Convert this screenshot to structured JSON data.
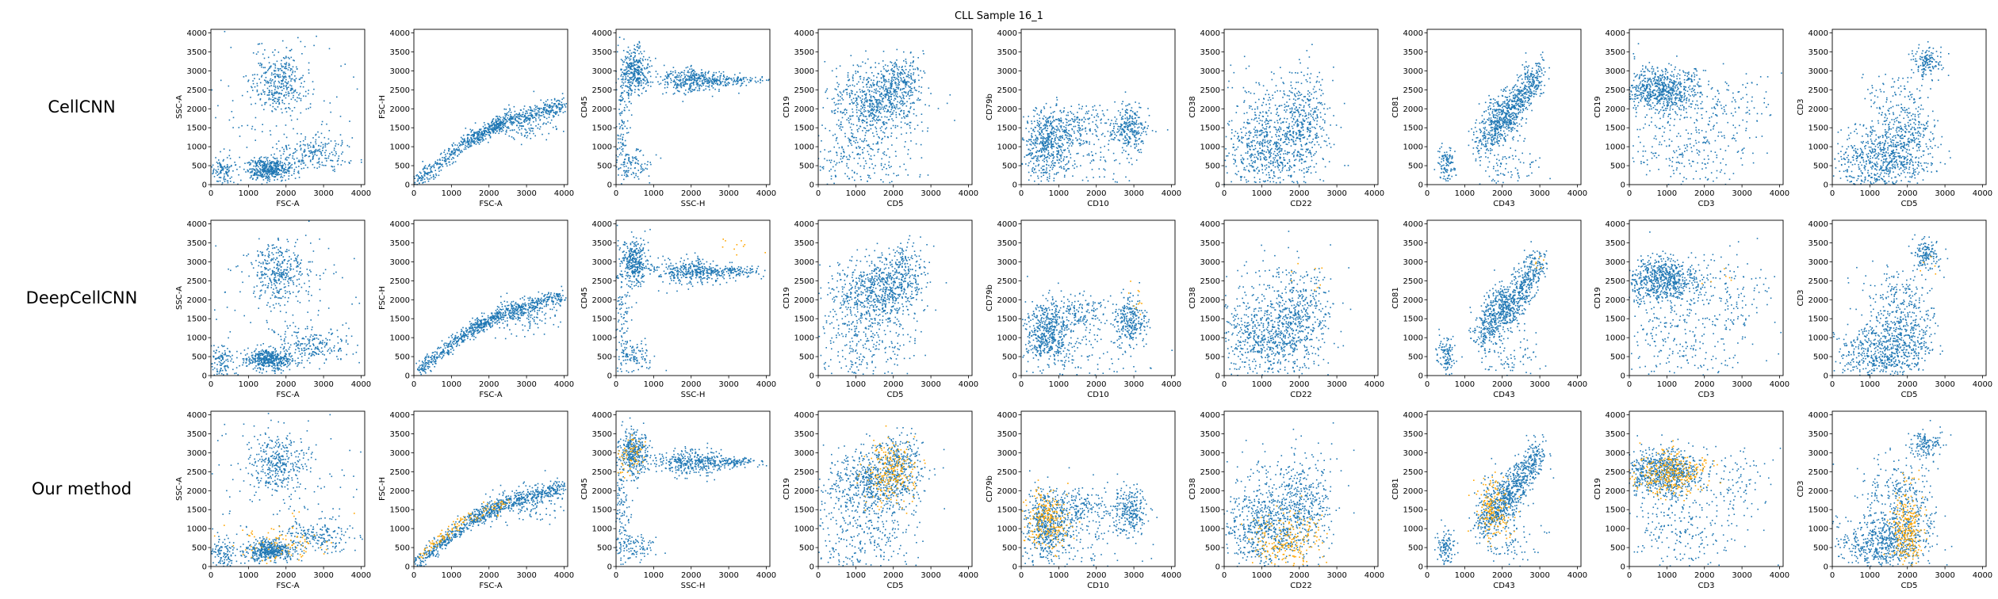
{
  "figure": {
    "suptitle": "CLL Sample 16_1",
    "colors": {
      "background_cells": "#1f77b4",
      "selected_cells": "#ffa500",
      "axes": "#000000"
    }
  },
  "chart_data": {
    "type": "scatter",
    "rows": [
      "CellCNN",
      "DeepCellCNN",
      "Our method"
    ],
    "panels": [
      {
        "xlabel": "FSC-A",
        "ylabel": "SSC-A"
      },
      {
        "xlabel": "FSC-A",
        "ylabel": "FSC-H"
      },
      {
        "xlabel": "SSC-H",
        "ylabel": "CD45"
      },
      {
        "xlabel": "CD5",
        "ylabel": "CD19"
      },
      {
        "xlabel": "CD10",
        "ylabel": "CD79b"
      },
      {
        "xlabel": "CD22",
        "ylabel": "CD38"
      },
      {
        "xlabel": "CD43",
        "ylabel": "CD81"
      },
      {
        "xlabel": "CD3",
        "ylabel": "CD19"
      },
      {
        "xlabel": "CD5",
        "ylabel": "CD3"
      }
    ],
    "xlim": [
      0,
      4096
    ],
    "ylim": [
      0,
      4096
    ],
    "xticks": [
      "0",
      "1000",
      "2000",
      "3000",
      "4000"
    ],
    "yticks": [
      "0",
      "500",
      "1000",
      "1500",
      "2000",
      "2500",
      "3000",
      "3500",
      "4000"
    ],
    "grid": false,
    "series": [
      {
        "name": "",
        "color": "#1f77b4"
      },
      {
        "name": "",
        "color": "#ffa500"
      }
    ],
    "clusters": [
      [
        {
          "cx": 1800,
          "cy": 2700,
          "sx": 350,
          "sy": 400,
          "n": 330
        },
        {
          "cx": 1550,
          "cy": 420,
          "sx": 320,
          "sy": 140,
          "n": 430
        },
        {
          "cx": 2800,
          "cy": 800,
          "sx": 500,
          "sy": 220,
          "n": 190
        },
        {
          "cx": 300,
          "cy": 350,
          "sx": 180,
          "sy": 250,
          "n": 120
        },
        {
          "cx": 2000,
          "cy": 2000,
          "sx": 1100,
          "sy": 1100,
          "n": 130
        }
      ],
      [
        {
          "line": [
            [
              50,
              80
            ],
            [
              1500,
              1200
            ],
            [
              2400,
              1650
            ],
            [
              4000,
              2100
            ]
          ],
          "s": 110,
          "n": 820
        },
        {
          "cx": 3000,
          "cy": 1600,
          "sx": 500,
          "sy": 250,
          "n": 120
        }
      ],
      [
        {
          "cx": 500,
          "cy": 3000,
          "sx": 180,
          "sy": 300,
          "n": 330
        },
        {
          "cx": 2000,
          "cy": 2750,
          "sx": 450,
          "sy": 170,
          "n": 330
        },
        {
          "cx": 3100,
          "cy": 2750,
          "sx": 450,
          "sy": 70,
          "n": 130
        },
        {
          "cx": 150,
          "cy": 1500,
          "sx": 120,
          "sy": 900,
          "n": 140
        },
        {
          "cx": 500,
          "cy": 500,
          "sx": 250,
          "sy": 200,
          "n": 90
        }
      ],
      [
        {
          "cx": 1500,
          "cy": 2200,
          "sx": 600,
          "sy": 450,
          "n": 650
        },
        {
          "cx": 2200,
          "cy": 2800,
          "sx": 300,
          "sy": 350,
          "n": 200
        },
        {
          "cx": 1200,
          "cy": 800,
          "sx": 700,
          "sy": 600,
          "n": 280
        }
      ],
      [
        {
          "cx": 700,
          "cy": 1100,
          "sx": 300,
          "sy": 450,
          "n": 500
        },
        {
          "cx": 1600,
          "cy": 1600,
          "sx": 450,
          "sy": 250,
          "n": 150
        },
        {
          "cx": 2900,
          "cy": 1450,
          "sx": 220,
          "sy": 320,
          "n": 250
        },
        {
          "cx": 1500,
          "cy": 700,
          "sx": 800,
          "sy": 600,
          "n": 150
        }
      ],
      [
        {
          "cx": 1200,
          "cy": 1000,
          "sx": 650,
          "sy": 550,
          "n": 700
        },
        {
          "cx": 2100,
          "cy": 1700,
          "sx": 350,
          "sy": 600,
          "n": 250
        },
        {
          "cx": 1500,
          "cy": 2300,
          "sx": 800,
          "sy": 500,
          "n": 100
        }
      ],
      [
        {
          "line": [
            [
              1400,
              1000
            ],
            [
              2300,
              2000
            ],
            [
              3000,
              3000
            ]
          ],
          "s": 250,
          "n": 650
        },
        {
          "cx": 2000,
          "cy": 1800,
          "sx": 250,
          "sy": 350,
          "n": 200
        },
        {
          "cx": 500,
          "cy": 500,
          "sx": 120,
          "sy": 250,
          "n": 110
        },
        {
          "cx": 2200,
          "cy": 500,
          "sx": 400,
          "sy": 400,
          "n": 90
        }
      ],
      [
        {
          "cx": 900,
          "cy": 2500,
          "sx": 500,
          "sy": 300,
          "n": 700
        },
        {
          "cx": 1500,
          "cy": 1000,
          "sx": 900,
          "sy": 700,
          "n": 280
        },
        {
          "cx": 2800,
          "cy": 2200,
          "sx": 500,
          "sy": 500,
          "n": 90
        }
      ],
      [
        {
          "cx": 1300,
          "cy": 600,
          "sx": 600,
          "sy": 400,
          "n": 600
        },
        {
          "cx": 2000,
          "cy": 1200,
          "sx": 350,
          "sy": 450,
          "n": 200
        },
        {
          "cx": 2500,
          "cy": 3200,
          "sx": 200,
          "sy": 200,
          "n": 140
        },
        {
          "cx": 1700,
          "cy": 2000,
          "sx": 500,
          "sy": 450,
          "n": 160
        }
      ]
    ],
    "highlights": [
      [
        [],
        [],
        [],
        [],
        [],
        [],
        [],
        [],
        []
      ],
      [
        [],
        [],
        [
          {
            "cx": 3300,
            "cy": 3450,
            "sx": 300,
            "sy": 150,
            "n": 10
          }
        ],
        [],
        [
          {
            "cx": 3100,
            "cy": 2000,
            "sx": 150,
            "sy": 200,
            "n": 10
          }
        ],
        [
          {
            "cx": 2300,
            "cy": 2600,
            "sx": 300,
            "sy": 300,
            "n": 8
          }
        ],
        [
          {
            "cx": 3000,
            "cy": 3050,
            "sx": 100,
            "sy": 100,
            "n": 6
          }
        ],
        [
          {
            "cx": 2200,
            "cy": 2700,
            "sx": 300,
            "sy": 200,
            "n": 6
          }
        ],
        [
          {
            "cx": 2500,
            "cy": 2900,
            "sx": 200,
            "sy": 200,
            "n": 5
          }
        ]
      ],
      [
        [
          {
            "cx": 1800,
            "cy": 600,
            "sx": 700,
            "sy": 250,
            "n": 90
          }
        ],
        [
          {
            "line": [
              [
                200,
                300
              ],
              [
                1200,
                1150
              ],
              [
                2500,
                1700
              ]
            ],
            "s": 90,
            "n": 120
          }
        ],
        [
          {
            "cx": 400,
            "cy": 2900,
            "sx": 200,
            "sy": 300,
            "n": 70
          }
        ],
        [
          {
            "cx": 1900,
            "cy": 2500,
            "sx": 350,
            "sy": 400,
            "n": 230
          }
        ],
        [
          {
            "cx": 700,
            "cy": 1200,
            "sx": 280,
            "sy": 400,
            "n": 220
          }
        ],
        [
          {
            "cx": 1700,
            "cy": 600,
            "sx": 500,
            "sy": 450,
            "n": 230
          }
        ],
        [
          {
            "cx": 1800,
            "cy": 1500,
            "sx": 250,
            "sy": 400,
            "n": 170
          }
        ],
        [
          {
            "cx": 1100,
            "cy": 2450,
            "sx": 450,
            "sy": 300,
            "n": 300
          }
        ],
        [
          {
            "cx": 2000,
            "cy": 900,
            "sx": 200,
            "sy": 600,
            "n": 260
          }
        ]
      ]
    ]
  }
}
